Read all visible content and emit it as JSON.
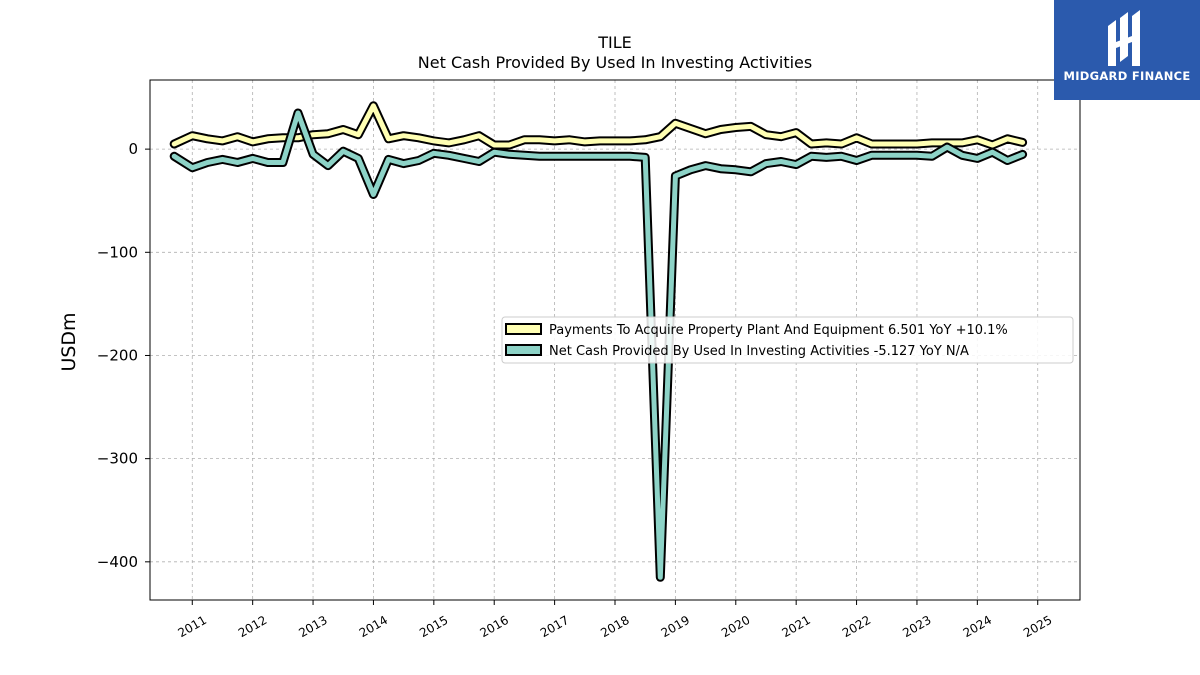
{
  "logo": {
    "brand": "MIDGARD FINANCE",
    "icon": "midgard-logo-icon",
    "background": "#2b5aad"
  },
  "chart_data": {
    "type": "line",
    "title": "TILE",
    "subtitle": "Net Cash Provided By Used In Investing Activities",
    "xlabel": "",
    "ylabel": "USDm",
    "ylim": [
      -437,
      67
    ],
    "xlim": [
      2010.3,
      2025.7
    ],
    "yticks": [
      0,
      -100,
      -200,
      -300,
      -400
    ],
    "ytick_labels": [
      "0",
      "−100",
      "−200",
      "−300",
      "−400"
    ],
    "xticks": [
      2011,
      2012,
      2013,
      2014,
      2015,
      2016,
      2017,
      2018,
      2019,
      2020,
      2021,
      2022,
      2023,
      2024,
      2025
    ],
    "xtick_labels": [
      "2011",
      "2012",
      "2013",
      "2014",
      "2015",
      "2016",
      "2017",
      "2018",
      "2019",
      "2020",
      "2021",
      "2022",
      "2023",
      "2024",
      "2025"
    ],
    "grid": true,
    "legend_position": "center-right",
    "series": [
      {
        "name": "Payments To Acquire Property Plant And Equipment  6.501 YoY +10.1%",
        "color": "#ffffb3",
        "x": [
          2010.7,
          2011.0,
          2011.25,
          2011.5,
          2011.75,
          2012.0,
          2012.25,
          2012.5,
          2012.75,
          2013.0,
          2013.25,
          2013.5,
          2013.75,
          2014.0,
          2014.25,
          2014.5,
          2014.75,
          2015.0,
          2015.25,
          2015.5,
          2015.75,
          2016.0,
          2016.25,
          2016.5,
          2016.75,
          2017.0,
          2017.25,
          2017.5,
          2017.75,
          2018.0,
          2018.25,
          2018.5,
          2018.75,
          2019.0,
          2019.25,
          2019.5,
          2019.75,
          2020.0,
          2020.25,
          2020.5,
          2020.75,
          2021.0,
          2021.25,
          2021.5,
          2021.75,
          2022.0,
          2022.25,
          2022.5,
          2022.75,
          2023.0,
          2023.25,
          2023.5,
          2023.75,
          2024.0,
          2024.25,
          2024.5,
          2024.75
        ],
        "values": [
          5,
          13,
          10,
          8,
          12,
          7,
          10,
          11,
          11,
          14,
          15,
          19,
          14,
          42,
          10,
          13,
          11,
          8,
          6,
          9,
          13,
          4,
          4,
          9,
          9,
          8,
          9,
          7,
          8,
          8,
          8,
          9,
          12,
          25,
          20,
          15,
          19,
          21,
          22,
          14,
          12,
          16,
          5,
          6,
          5,
          11,
          5,
          5,
          5,
          5,
          6,
          6,
          6,
          9,
          4,
          10,
          6.5
        ]
      },
      {
        "name": "Net Cash Provided By Used In Investing Activities  -5.127 YoY N/A",
        "color": "#8dd3c7",
        "x": [
          2010.7,
          2011.0,
          2011.25,
          2011.5,
          2011.75,
          2012.0,
          2012.25,
          2012.5,
          2012.75,
          2013.0,
          2013.25,
          2013.5,
          2013.75,
          2014.0,
          2014.25,
          2014.5,
          2014.75,
          2015.0,
          2015.25,
          2015.5,
          2015.75,
          2016.0,
          2016.25,
          2016.5,
          2016.75,
          2017.0,
          2017.25,
          2017.5,
          2017.75,
          2018.0,
          2018.25,
          2018.5,
          2018.75,
          2019.0,
          2019.25,
          2019.5,
          2019.75,
          2020.0,
          2020.25,
          2020.5,
          2020.75,
          2021.0,
          2021.25,
          2021.5,
          2021.75,
          2022.0,
          2022.25,
          2022.5,
          2022.75,
          2023.0,
          2023.25,
          2023.5,
          2023.75,
          2024.0,
          2024.25,
          2024.5,
          2024.75
        ],
        "values": [
          -7,
          -18,
          -13,
          -10,
          -13,
          -9,
          -13,
          -13,
          35,
          -5,
          -16,
          -2,
          -9,
          -44,
          -10,
          -14,
          -11,
          -4,
          -6,
          -9,
          -12,
          -3,
          -5,
          -6,
          -7,
          -7,
          -7,
          -7,
          -7,
          -7,
          -7,
          -8,
          -415,
          -26,
          -20,
          -16,
          -19,
          -20,
          -22,
          -14,
          -12,
          -15,
          -7,
          -8,
          -7,
          -11,
          -6,
          -6,
          -6,
          -6,
          -7,
          2,
          -6,
          -9,
          -3,
          -11,
          -5.1
        ]
      }
    ]
  }
}
